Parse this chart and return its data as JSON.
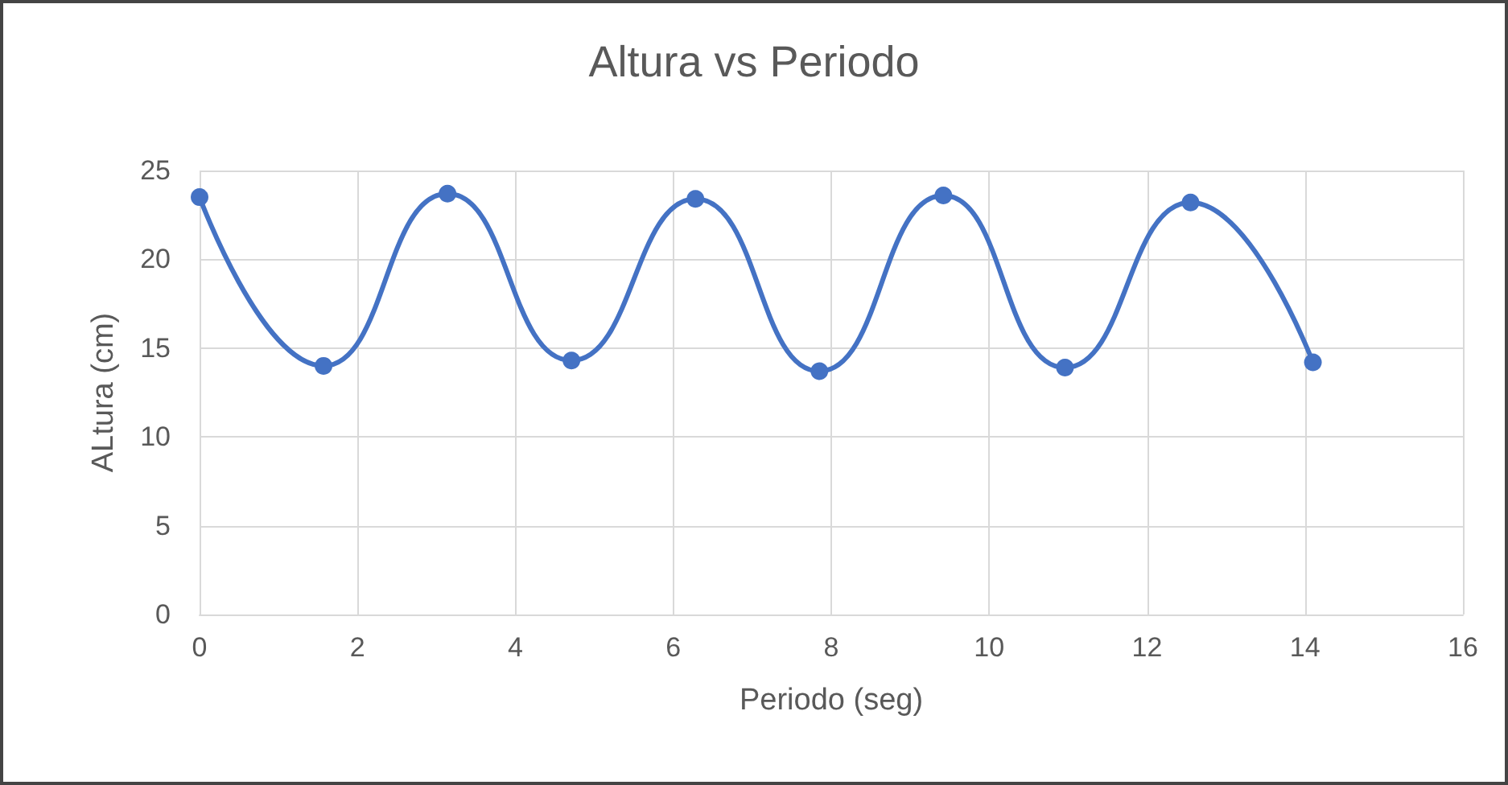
{
  "chart_data": {
    "type": "line",
    "title": "Altura vs Periodo",
    "xlabel": "Periodo (seg)",
    "ylabel": "ALtura (cm)",
    "x": [
      0,
      1.57,
      3.14,
      4.71,
      6.28,
      7.85,
      9.42,
      10.96,
      12.55,
      14.1
    ],
    "series": [
      {
        "color": "#4472c4",
        "values": [
          23.5,
          14,
          23.7,
          14.3,
          23.4,
          13.7,
          23.6,
          13.9,
          23.2,
          14.2
        ]
      }
    ],
    "xlim": [
      0,
      16
    ],
    "xticks": [
      0,
      2,
      4,
      6,
      8,
      10,
      12,
      14,
      16
    ],
    "ylim": [
      0,
      25
    ],
    "yticks": [
      0,
      5,
      10,
      15,
      20,
      25
    ],
    "grid": true,
    "marker": "circle",
    "line_style": "solid"
  }
}
